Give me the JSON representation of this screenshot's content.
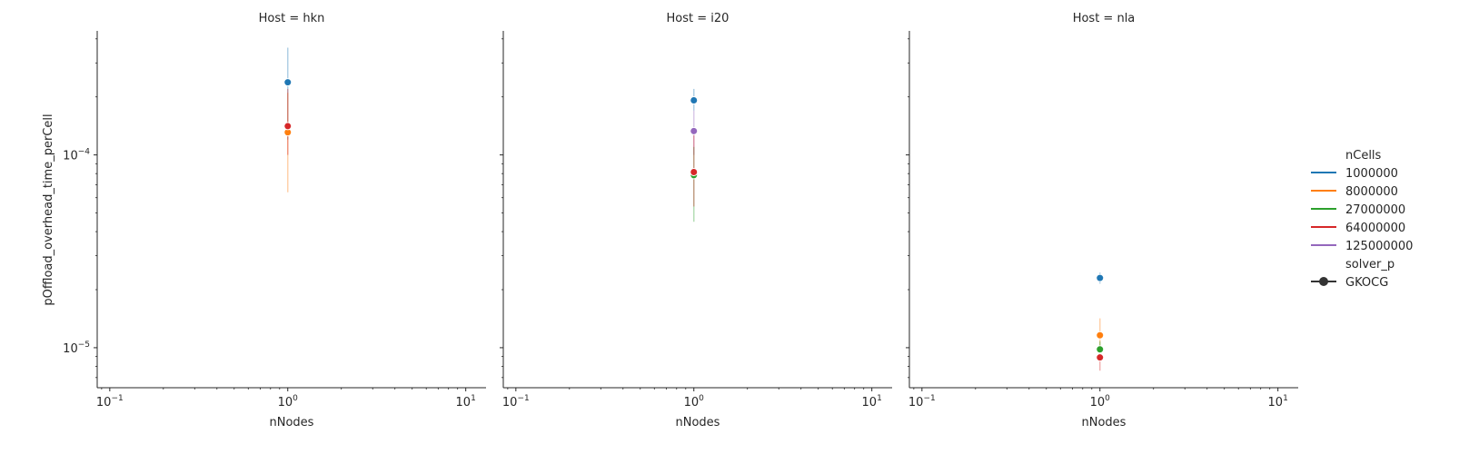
{
  "chart_data": {
    "type": "scatter",
    "xlabel": "nNodes",
    "ylabel": "pOffload_overhead_time_perCell",
    "xscale": "log",
    "yscale": "log",
    "xlim": [
      0.085,
      13
    ],
    "ylim": [
      6.2e-06,
      0.00044
    ],
    "x_ticks": [
      {
        "value": 0.1,
        "base": "10",
        "exp": "−1"
      },
      {
        "value": 1,
        "base": "10",
        "exp": "0"
      },
      {
        "value": 10,
        "base": "10",
        "exp": "1"
      }
    ],
    "y_ticks": [
      {
        "value": 1e-05,
        "base": "10",
        "exp": "−5"
      },
      {
        "value": 0.0001,
        "base": "10",
        "exp": "−4"
      }
    ],
    "legend": {
      "placement": "right",
      "hue_title": "nCells",
      "style_title": "solver_p",
      "hue_entries": [
        {
          "label": "1000000",
          "color": "#1f77b4"
        },
        {
          "label": "8000000",
          "color": "#ff7f0e"
        },
        {
          "label": "27000000",
          "color": "#2ca02c"
        },
        {
          "label": "64000000",
          "color": "#d62728"
        },
        {
          "label": "125000000",
          "color": "#9467bd"
        }
      ],
      "style_entries": [
        {
          "label": "GKOCG",
          "color": "#333333"
        }
      ]
    },
    "panels": [
      {
        "title": "Host = hkn",
        "points": [
          {
            "series": "1000000",
            "x": 1,
            "y": 0.000238,
            "ci": [
              0.00012,
              0.00036
            ],
            "color": "#1f77b4"
          },
          {
            "series": "8000000",
            "x": 1,
            "y": 0.000131,
            "ci": [
              6.4e-05,
              0.00021
            ],
            "color": "#ff7f0e"
          },
          {
            "series": "64000000",
            "x": 1,
            "y": 0.000141,
            "ci": [
              0.0001,
              0.00022
            ],
            "color": "#d62728"
          }
        ]
      },
      {
        "title": "Host = i20",
        "points": [
          {
            "series": "1000000",
            "x": 1,
            "y": 0.000192,
            "ci": [
              0.00017,
              0.00022
            ],
            "color": "#1f77b4"
          },
          {
            "series": "125000000",
            "x": 1,
            "y": 0.000133,
            "ci": [
              0.0001,
              0.00017
            ],
            "color": "#9467bd"
          },
          {
            "series": "27000000",
            "x": 1,
            "y": 7.85e-05,
            "ci": [
              4.5e-05,
              0.00011
            ],
            "color": "#2ca02c"
          },
          {
            "series": "64000000",
            "x": 1,
            "y": 8.15e-05,
            "ci": [
              5.4e-05,
              0.00013
            ],
            "color": "#d62728"
          }
        ]
      },
      {
        "title": "Host = nla",
        "points": [
          {
            "series": "1000000",
            "x": 1,
            "y": 2.3e-05,
            "ci": [
              2.15e-05,
              2.45e-05
            ],
            "color": "#1f77b4"
          },
          {
            "series": "8000000",
            "x": 1,
            "y": 1.16e-05,
            "ci": [
              9.5e-06,
              1.42e-05
            ],
            "color": "#ff7f0e"
          },
          {
            "series": "27000000",
            "x": 1,
            "y": 9.8e-06,
            "ci": [
              8.8e-06,
              1.08e-05
            ],
            "color": "#2ca02c"
          },
          {
            "series": "64000000",
            "x": 1,
            "y": 8.9e-06,
            "ci": [
              7.6e-06,
              1.03e-05
            ],
            "color": "#d62728"
          }
        ]
      }
    ]
  }
}
